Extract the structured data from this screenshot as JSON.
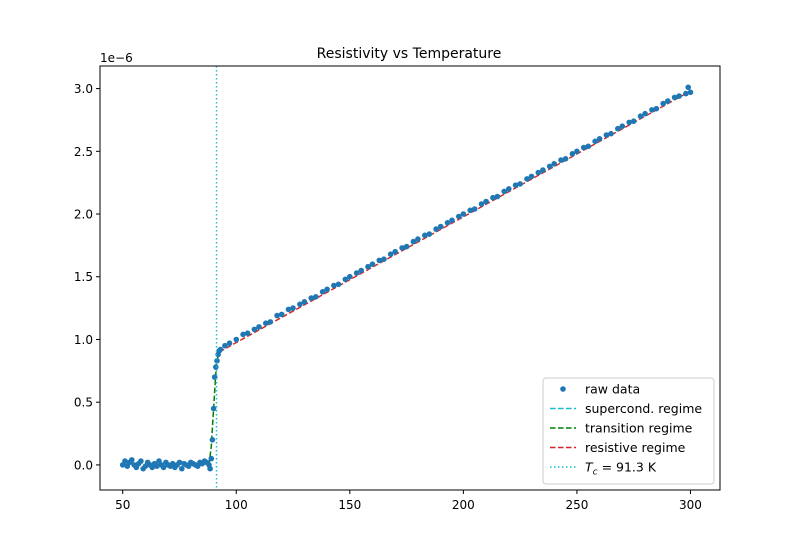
{
  "chart_data": {
    "type": "scatter",
    "title": "Resistivity vs Temperature",
    "xlabel": "",
    "ylabel": "",
    "y_offset_label": "1e−6",
    "xlim": [
      40,
      313
    ],
    "ylim": [
      -0.2,
      3.18
    ],
    "x_ticks": [
      50,
      100,
      150,
      200,
      250,
      300
    ],
    "x_tick_labels": [
      "50",
      "100",
      "150",
      "200",
      "250",
      "300"
    ],
    "y_ticks": [
      0.0,
      0.5,
      1.0,
      1.5,
      2.0,
      2.5,
      3.0
    ],
    "y_tick_labels": [
      "0.0",
      "0.5",
      "1.0",
      "1.5",
      "2.0",
      "2.5",
      "3.0"
    ],
    "grid": false,
    "legend_position": "bottom-right",
    "series": [
      {
        "name": "raw data",
        "kind": "scatter",
        "color": "#1f77b4",
        "x": [
          50,
          51,
          52,
          53,
          54,
          55,
          56,
          57,
          58,
          59,
          60,
          61,
          62,
          63,
          64,
          65,
          66,
          67,
          68,
          69,
          70,
          71,
          72,
          73,
          74,
          75,
          76,
          77,
          78,
          79,
          80,
          81,
          82,
          83,
          84,
          85,
          86,
          87,
          88,
          88.5,
          89,
          89.5,
          90,
          90.5,
          91,
          91.5,
          92,
          92.5,
          93,
          95,
          97,
          100,
          103,
          105,
          108,
          110,
          113,
          115,
          118,
          120,
          123,
          125,
          128,
          130,
          133,
          135,
          138,
          140,
          143,
          145,
          148,
          150,
          153,
          155,
          158,
          160,
          163,
          165,
          168,
          170,
          173,
          175,
          178,
          180,
          183,
          185,
          188,
          190,
          193,
          195,
          198,
          200,
          203,
          205,
          208,
          210,
          213,
          215,
          218,
          220,
          223,
          225,
          228,
          230,
          233,
          235,
          238,
          240,
          243,
          245,
          248,
          250,
          253,
          255,
          258,
          260,
          263,
          265,
          268,
          270,
          273,
          275,
          278,
          280,
          283,
          285,
          288,
          290,
          293,
          295,
          298,
          299,
          300
        ],
        "y": [
          0.0,
          0.03,
          -0.01,
          0.02,
          0.04,
          0.0,
          -0.02,
          0.01,
          0.03,
          -0.03,
          -0.01,
          0.02,
          0.0,
          -0.02,
          0.01,
          -0.01,
          0.03,
          0.0,
          -0.02,
          0.02,
          0.0,
          -0.01,
          0.01,
          -0.02,
          0.0,
          0.02,
          -0.03,
          0.01,
          0.0,
          -0.01,
          0.02,
          0.01,
          0.0,
          -0.01,
          0.02,
          0.01,
          0.03,
          0.02,
          0.0,
          -0.03,
          0.05,
          0.2,
          0.45,
          0.7,
          0.78,
          0.83,
          0.88,
          0.91,
          0.92,
          0.95,
          0.97,
          1.0,
          1.04,
          1.05,
          1.08,
          1.1,
          1.13,
          1.14,
          1.19,
          1.2,
          1.24,
          1.25,
          1.28,
          1.3,
          1.33,
          1.34,
          1.38,
          1.4,
          1.43,
          1.44,
          1.48,
          1.5,
          1.53,
          1.55,
          1.58,
          1.6,
          1.63,
          1.64,
          1.68,
          1.7,
          1.73,
          1.74,
          1.78,
          1.8,
          1.83,
          1.84,
          1.88,
          1.9,
          1.93,
          1.95,
          1.98,
          2.0,
          2.03,
          2.04,
          2.08,
          2.1,
          2.13,
          2.14,
          2.18,
          2.2,
          2.23,
          2.24,
          2.28,
          2.3,
          2.33,
          2.35,
          2.38,
          2.4,
          2.43,
          2.44,
          2.48,
          2.5,
          2.53,
          2.54,
          2.58,
          2.6,
          2.63,
          2.64,
          2.68,
          2.7,
          2.73,
          2.74,
          2.78,
          2.8,
          2.83,
          2.84,
          2.88,
          2.9,
          2.93,
          2.94,
          2.96,
          3.01,
          2.97
        ]
      },
      {
        "name": "supercond. regime",
        "kind": "line",
        "style": "dashed",
        "color": "#17becf",
        "x": [],
        "y": []
      },
      {
        "name": "transition regime",
        "kind": "line",
        "style": "dashed",
        "color": "#008000",
        "x": [
          88,
          89,
          90,
          91.3,
          92.5
        ],
        "y": [
          0.0,
          0.15,
          0.45,
          0.82,
          0.9
        ]
      },
      {
        "name": "resistive regime",
        "kind": "line",
        "style": "dashed",
        "color": "#d62728",
        "x": [
          92.5,
          300
        ],
        "y": [
          0.9,
          2.98
        ]
      },
      {
        "name": "T_c = 91.3 K",
        "kind": "vline",
        "style": "dotted",
        "color": "#17becf",
        "x": [
          91.3
        ]
      }
    ],
    "legend": [
      {
        "label": "raw data",
        "marker": "dot",
        "color": "#1f77b4"
      },
      {
        "label": "supercond. regime",
        "marker": "dash",
        "color": "#17becf"
      },
      {
        "label": "transition regime",
        "marker": "dash",
        "color": "#008000"
      },
      {
        "label": "resistive regime",
        "marker": "dash",
        "color": "#d62728"
      },
      {
        "label": "= 91.3 K",
        "math_symbol": "T",
        "math_subscript": "c",
        "marker": "dot-line",
        "color": "#17becf"
      }
    ]
  }
}
